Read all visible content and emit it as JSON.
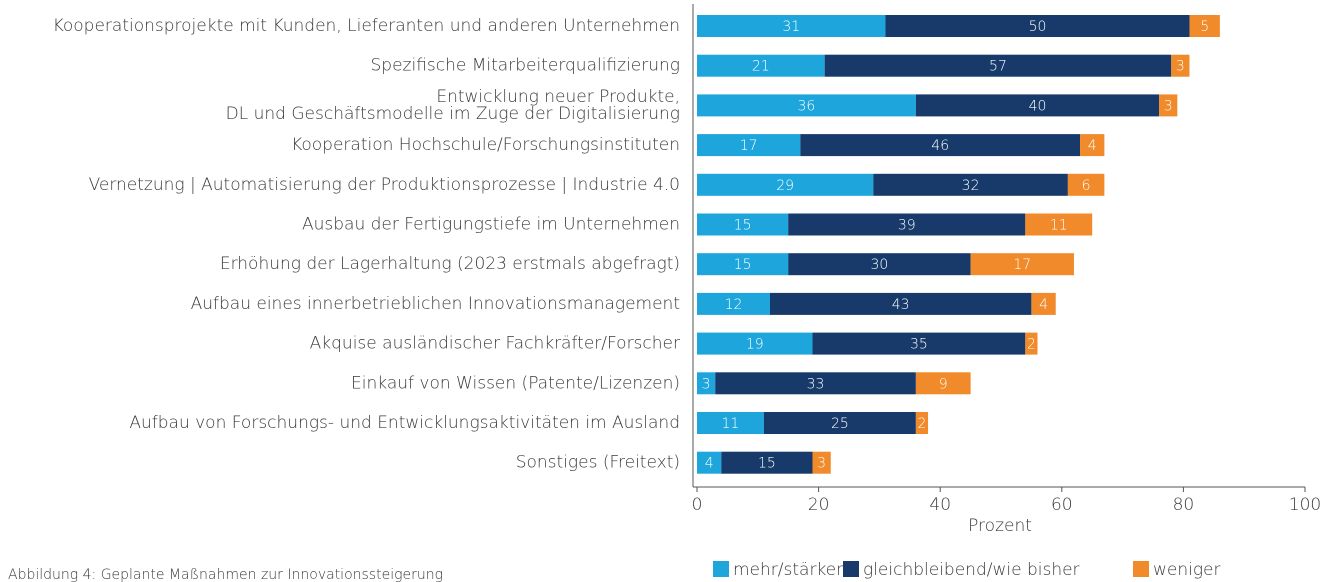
{
  "chart_data": {
    "type": "stacked-barh",
    "categories": [
      "Kooperationsprojekte mit Kunden, Lieferanten und anderen Unternehmen",
      "Spezifische Mitarbeiterqualifizierung",
      "Entwicklung neuer Produkte,\nDL und Geschäftsmodelle im Zuge der Digitalisierung",
      "Kooperation Hochschule/Forschungsinstituten",
      "Vernetzung | Automatisierung der Produktionsprozesse | Industrie 4.0",
      "Ausbau der Fertigungstiefe im Unternehmen",
      "Erhöhung der Lagerhaltung (2023 erstmals abgefragt)",
      "Aufbau eines innerbetrieblichen Innovationsmanagement",
      "Akquise ausländischer Fachkräfter/Forscher",
      "Einkauf von Wissen (Patente/Lizenzen)",
      "Aufbau von Forschungs- und Entwicklungsaktivitäten im Ausland",
      "Sonstiges (Freitext)"
    ],
    "series": [
      {
        "name": "mehr/stärker",
        "color": "#1ea5dc",
        "values": [
          31,
          21,
          36,
          17,
          29,
          15,
          15,
          12,
          19,
          3,
          11,
          4
        ]
      },
      {
        "name": "gleichbleibend/wie bisher",
        "color": "#173a6a",
        "values": [
          50,
          57,
          40,
          46,
          32,
          39,
          30,
          43,
          35,
          33,
          25,
          15
        ]
      },
      {
        "name": "weniger",
        "color": "#f08a2a",
        "values": [
          5,
          3,
          3,
          4,
          6,
          11,
          17,
          4,
          2,
          9,
          2,
          3
        ]
      }
    ],
    "xlabel": "Prozent",
    "xlim": [
      0,
      100
    ],
    "xticks": [
      0,
      20,
      40,
      60,
      80,
      100
    ],
    "legend": "bottom",
    "caption": "Abbildung 4: Geplante Maßnahmen zur Innovationssteigerung"
  }
}
